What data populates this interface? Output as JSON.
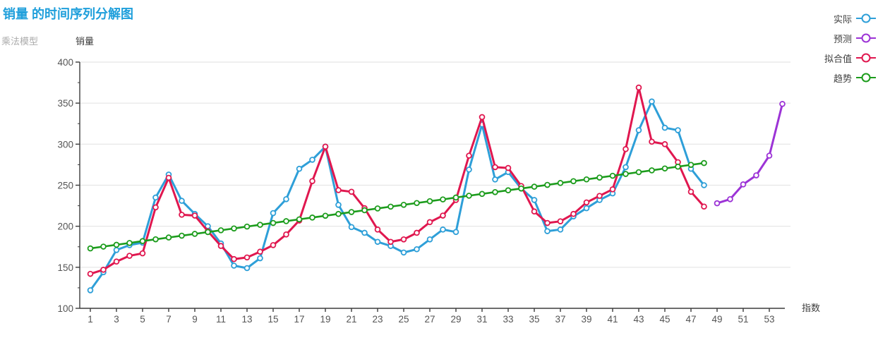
{
  "header": {
    "title": "销量 的时间序列分解图",
    "subtitle": "乘法模型"
  },
  "axes": {
    "y_title": "销量",
    "x_title": "指数",
    "y_ticks": [
      400,
      350,
      300,
      250,
      200,
      150,
      100
    ],
    "x_ticks": [
      1,
      3,
      5,
      7,
      9,
      11,
      13,
      15,
      17,
      19,
      21,
      23,
      25,
      27,
      29,
      31,
      33,
      35,
      37,
      39,
      41,
      43,
      45,
      47,
      49,
      51,
      53
    ],
    "grid_color": "#E5E5E5",
    "axis_color": "#3C3C3C",
    "tick_label_color": "#555555"
  },
  "legend": {
    "items": [
      {
        "label": "实际",
        "color": "#2E9FD8"
      },
      {
        "label": "预测",
        "color": "#9C33D6"
      },
      {
        "label": "拟合值",
        "color": "#E0174F"
      },
      {
        "label": "趋势",
        "color": "#1C9C1C"
      }
    ]
  },
  "chart_data": {
    "type": "line",
    "title": "销量 的时间序列分解图",
    "subtitle": "乘法模型",
    "xlabel": "指数",
    "ylabel": "销量",
    "ylim": [
      100,
      400
    ],
    "xlim": [
      1,
      54
    ],
    "grid": "horizontal",
    "legend_position": "top-right",
    "series": [
      {
        "name": "实际",
        "color": "#2E9FD8",
        "x_start": 1,
        "values": [
          122,
          144,
          171,
          177,
          180,
          235,
          263,
          231,
          215,
          200,
          179,
          152,
          149,
          161,
          216,
          233,
          270,
          281,
          297,
          226,
          199,
          192,
          181,
          176,
          168,
          172,
          184,
          196,
          193,
          269,
          324,
          257,
          266,
          246,
          232,
          194,
          196,
          212,
          222,
          232,
          240,
          272,
          317,
          352,
          320,
          317,
          270,
          250
        ]
      },
      {
        "name": "预测",
        "color": "#9C33D6",
        "x_start": 49,
        "values": [
          228,
          233,
          251,
          262,
          286,
          349
        ]
      },
      {
        "name": "拟合值",
        "color": "#E0174F",
        "x_start": 1,
        "values": [
          142,
          147,
          157,
          164,
          167,
          223,
          259,
          214,
          213,
          194,
          176,
          160,
          162,
          169,
          177,
          190,
          207,
          255,
          297,
          244,
          242,
          222,
          196,
          181,
          184,
          192,
          205,
          213,
          232,
          286,
          333,
          272,
          271,
          249,
          218,
          204,
          206,
          215,
          229,
          237,
          245,
          294,
          369,
          303,
          300,
          278,
          242,
          224
        ]
      },
      {
        "name": "趋势",
        "color": "#1C9C1C",
        "x_start": 1,
        "values": [
          173.0,
          175.2,
          177.4,
          179.6,
          181.9,
          184.1,
          186.3,
          188.5,
          190.7,
          192.9,
          195.1,
          197.3,
          199.6,
          201.8,
          204.0,
          206.2,
          208.4,
          210.6,
          212.8,
          215.0,
          217.3,
          219.5,
          221.7,
          223.9,
          226.1,
          228.3,
          230.5,
          232.7,
          235.0,
          237.2,
          239.4,
          241.6,
          243.8,
          246.0,
          248.2,
          250.4,
          252.7,
          254.9,
          257.1,
          259.3,
          261.5,
          263.7,
          265.9,
          268.1,
          270.4,
          272.6,
          274.8,
          277.0
        ]
      }
    ]
  }
}
